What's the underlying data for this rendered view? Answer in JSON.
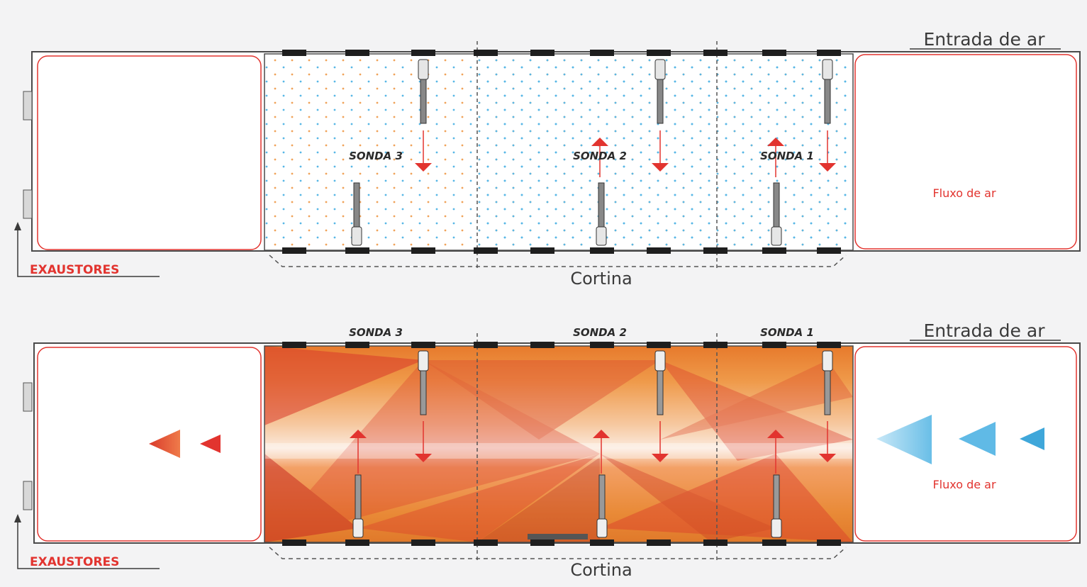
{
  "panels": [
    {
      "id": "top",
      "state": "idle",
      "inlet_label": "Entrada de ar",
      "exhaust_label": "EXAUSTORES",
      "curtain_label": "Cortina",
      "airflow_label": "Fluxo de ar",
      "probes": [
        {
          "label": "SONDA 3",
          "arrows": [
            "down"
          ]
        },
        {
          "label": "SONDA 2",
          "arrows": [
            "up",
            "down"
          ]
        },
        {
          "label": "SONDA 1",
          "arrows": [
            "up",
            "down"
          ]
        }
      ]
    },
    {
      "id": "bottom",
      "state": "heated",
      "inlet_label": "Entrada de ar",
      "exhaust_label": "EXAUSTORES",
      "curtain_label": "Cortina",
      "airflow_label": "Fluxo de ar",
      "probes": [
        {
          "label": "SONDA 3",
          "arrows": [
            "up",
            "down"
          ]
        },
        {
          "label": "SONDA 2",
          "arrows": [
            "up",
            "down"
          ]
        },
        {
          "label": "SONDA 1",
          "arrows": [
            "up",
            "down"
          ]
        }
      ]
    }
  ],
  "colors": {
    "accent_red": "#e2342f",
    "heat_orange": "#e8842c",
    "heat_red": "#d93a2b",
    "air_blue": "#4fb3e3",
    "dot_orange": "#f0a35a",
    "dot_blue": "#58b7e6",
    "frame": "#4a4a4a"
  }
}
